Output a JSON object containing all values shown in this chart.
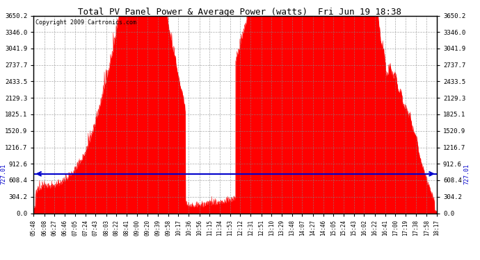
{
  "title": "Total PV Panel Power & Average Power (watts)  Fri Jun 19 18:38",
  "copyright": "Copyright 2009 Cartronics.com",
  "average_power": 727.01,
  "ymax": 3650.2,
  "yticks": [
    0.0,
    304.2,
    608.4,
    912.6,
    1216.7,
    1520.9,
    1825.1,
    2129.3,
    2433.5,
    2737.7,
    3041.9,
    3346.0,
    3650.2
  ],
  "xtick_labels": [
    "05:48",
    "06:08",
    "06:27",
    "06:46",
    "07:05",
    "07:24",
    "07:43",
    "08:03",
    "08:22",
    "08:41",
    "09:00",
    "09:20",
    "09:39",
    "09:58",
    "10:17",
    "10:36",
    "10:56",
    "11:15",
    "11:34",
    "11:53",
    "12:12",
    "12:31",
    "12:51",
    "13:10",
    "13:29",
    "13:48",
    "14:07",
    "14:27",
    "14:46",
    "15:05",
    "15:24",
    "15:43",
    "16:02",
    "16:22",
    "16:41",
    "17:00",
    "17:19",
    "17:38",
    "17:58",
    "18:17"
  ],
  "fill_color": "#ff0000",
  "line_color": "#ff0000",
  "avg_line_color": "#0000cc",
  "background_color": "#ffffff",
  "grid_color": "#888888",
  "title_color": "#000000",
  "border_color": "#000000"
}
